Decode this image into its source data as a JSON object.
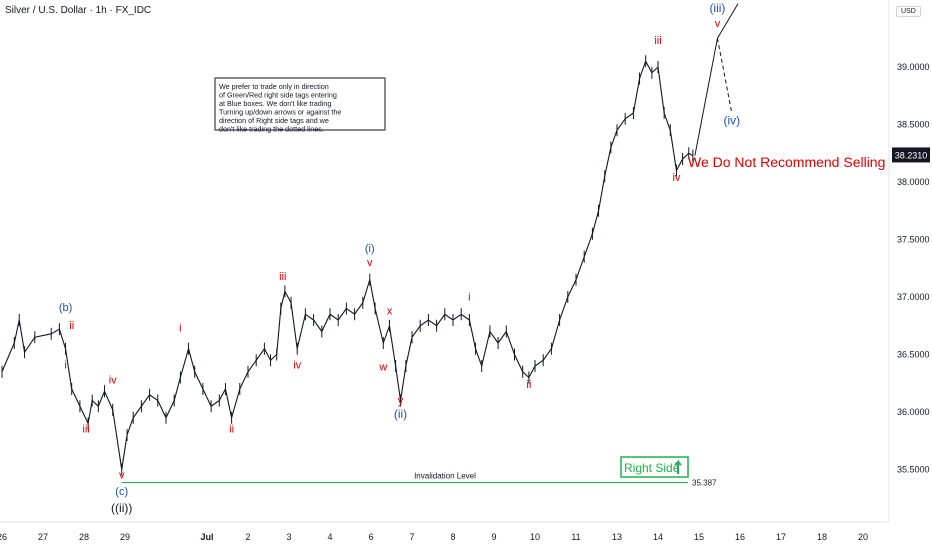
{
  "header": {
    "title": "Silver / U.S. Dollar · 1h · FX_IDC",
    "currency": "USD"
  },
  "note": "We prefer to trade only in direction of Green/Red right side tags entering at Blue boxes. We don't like trading Turning up/down arrows or against the direction of Right side tags and we don't like trading the dotted lines.",
  "headline": "We Do Not Recommend Selling",
  "right_side_label": "Right Side",
  "invalidation": {
    "label": "Invalidation Level",
    "value": 35.387,
    "value_label": "35.387"
  },
  "current_price": {
    "value": 38.231,
    "label": "38.2310"
  },
  "colors": {
    "red": "#e00000",
    "blue": "#1f4fb4",
    "green": "#22b14c",
    "candle": "#131722",
    "badge": "#131722"
  },
  "chart_data": {
    "type": "line",
    "title": "Silver / U.S. Dollar · 1h · FX_IDC",
    "xlabel": "",
    "ylabel": "USD",
    "ylim": [
      35.1,
      39.6
    ],
    "grid": false,
    "x_ticks": [
      {
        "t": 0.0,
        "label": "26"
      },
      {
        "t": 1.0,
        "label": "27"
      },
      {
        "t": 2.0,
        "label": "28"
      },
      {
        "t": 3.0,
        "label": "29"
      },
      {
        "t": 5.0,
        "label": "Jul"
      },
      {
        "t": 6.0,
        "label": "2"
      },
      {
        "t": 7.0,
        "label": "3"
      },
      {
        "t": 8.0,
        "label": "4"
      },
      {
        "t": 9.0,
        "label": "6"
      },
      {
        "t": 10.0,
        "label": "7"
      },
      {
        "t": 11.0,
        "label": "8"
      },
      {
        "t": 12.0,
        "label": "9"
      },
      {
        "t": 13.0,
        "label": "10"
      },
      {
        "t": 14.0,
        "label": "11"
      },
      {
        "t": 15.0,
        "label": "13"
      },
      {
        "t": 16.0,
        "label": "14"
      },
      {
        "t": 17.0,
        "label": "15"
      },
      {
        "t": 18.0,
        "label": "16"
      },
      {
        "t": 19.0,
        "label": "17"
      },
      {
        "t": 20.0,
        "label": "18"
      },
      {
        "t": 21.0,
        "label": "20"
      }
    ],
    "y_ticks": [
      35.5,
      36.0,
      36.5,
      37.0,
      37.5,
      38.0,
      38.5,
      39.0
    ],
    "y_tick_labels": [
      "35.5000",
      "36.0000",
      "36.5000",
      "37.0000",
      "37.5000",
      "38.0000",
      "38.5000",
      "39.0000"
    ],
    "series": [
      {
        "values": [
          [
            0.0,
            36.35
          ],
          [
            0.3,
            36.6
          ],
          [
            0.42,
            36.8
          ],
          [
            0.55,
            36.52
          ],
          [
            0.8,
            36.65
          ],
          [
            1.2,
            36.68
          ],
          [
            1.4,
            36.72
          ],
          [
            1.55,
            36.55
          ],
          [
            1.7,
            36.2
          ],
          [
            1.9,
            36.05
          ],
          [
            2.1,
            35.9
          ],
          [
            2.2,
            36.1
          ],
          [
            2.35,
            36.05
          ],
          [
            2.5,
            36.18
          ],
          [
            2.7,
            36.02
          ],
          [
            2.92,
            35.5
          ],
          [
            3.05,
            35.8
          ],
          [
            3.2,
            35.95
          ],
          [
            3.4,
            36.05
          ],
          [
            3.6,
            36.15
          ],
          [
            3.8,
            36.1
          ],
          [
            4.0,
            35.95
          ],
          [
            4.2,
            36.1
          ],
          [
            4.35,
            36.3
          ],
          [
            4.55,
            36.55
          ],
          [
            4.7,
            36.35
          ],
          [
            4.9,
            36.2
          ],
          [
            5.1,
            36.05
          ],
          [
            5.3,
            36.1
          ],
          [
            5.45,
            36.2
          ],
          [
            5.6,
            35.95
          ],
          [
            5.8,
            36.2
          ],
          [
            6.0,
            36.35
          ],
          [
            6.2,
            36.45
          ],
          [
            6.4,
            36.55
          ],
          [
            6.55,
            36.45
          ],
          [
            6.7,
            36.5
          ],
          [
            6.8,
            36.9
          ],
          [
            6.9,
            37.05
          ],
          [
            7.05,
            36.95
          ],
          [
            7.2,
            36.55
          ],
          [
            7.4,
            36.85
          ],
          [
            7.6,
            36.8
          ],
          [
            7.8,
            36.7
          ],
          [
            8.0,
            36.85
          ],
          [
            8.2,
            36.8
          ],
          [
            8.4,
            36.9
          ],
          [
            8.6,
            36.85
          ],
          [
            8.8,
            36.95
          ],
          [
            8.97,
            37.15
          ],
          [
            9.1,
            36.9
          ],
          [
            9.3,
            36.6
          ],
          [
            9.45,
            36.75
          ],
          [
            9.6,
            36.4
          ],
          [
            9.72,
            36.1
          ],
          [
            9.85,
            36.4
          ],
          [
            10.0,
            36.65
          ],
          [
            10.2,
            36.75
          ],
          [
            10.4,
            36.8
          ],
          [
            10.6,
            36.75
          ],
          [
            10.8,
            36.85
          ],
          [
            11.0,
            36.8
          ],
          [
            11.2,
            36.85
          ],
          [
            11.4,
            36.8
          ],
          [
            11.55,
            36.55
          ],
          [
            11.7,
            36.4
          ],
          [
            11.9,
            36.7
          ],
          [
            12.1,
            36.6
          ],
          [
            12.3,
            36.7
          ],
          [
            12.5,
            36.5
          ],
          [
            12.7,
            36.35
          ],
          [
            12.85,
            36.3
          ],
          [
            13.0,
            36.4
          ],
          [
            13.2,
            36.45
          ],
          [
            13.4,
            36.55
          ],
          [
            13.6,
            36.8
          ],
          [
            13.8,
            37.0
          ],
          [
            14.0,
            37.15
          ],
          [
            14.2,
            37.35
          ],
          [
            14.4,
            37.55
          ],
          [
            14.55,
            37.75
          ],
          [
            14.7,
            38.05
          ],
          [
            14.85,
            38.3
          ],
          [
            15.0,
            38.45
          ],
          [
            15.2,
            38.55
          ],
          [
            15.4,
            38.6
          ],
          [
            15.55,
            38.9
          ],
          [
            15.7,
            39.05
          ],
          [
            15.85,
            38.95
          ],
          [
            16.0,
            39.0
          ],
          [
            16.15,
            38.6
          ],
          [
            16.3,
            38.45
          ],
          [
            16.45,
            38.1
          ],
          [
            16.6,
            38.2
          ],
          [
            16.75,
            38.25
          ],
          [
            16.85,
            38.23
          ]
        ]
      },
      {
        "style": "projection",
        "values": [
          [
            16.9,
            38.23
          ],
          [
            17.45,
            39.25
          ],
          [
            17.95,
            39.55
          ]
        ]
      },
      {
        "style": "dotted",
        "values": [
          [
            17.45,
            39.25
          ],
          [
            17.8,
            38.6
          ]
        ]
      }
    ],
    "annotations": [
      {
        "text": "(b)",
        "color": "blue",
        "x": 1.55,
        "y": 36.88
      },
      {
        "text": "ii",
        "color": "red",
        "x": 1.7,
        "y": 36.72
      },
      {
        "text": "i",
        "color": "red",
        "x": 1.55,
        "y": 36.38
      },
      {
        "text": "iii",
        "color": "red",
        "x": 2.05,
        "y": 35.82
      },
      {
        "text": "iv",
        "color": "red",
        "x": 2.7,
        "y": 36.25
      },
      {
        "text": "v",
        "color": "red",
        "x": 2.92,
        "y": 35.42
      },
      {
        "text": "(c)",
        "color": "blue",
        "x": 2.92,
        "y": 35.28
      },
      {
        "text": "((ii))",
        "color": "black",
        "x": 2.92,
        "y": 35.13
      },
      {
        "text": "i",
        "color": "red",
        "x": 4.35,
        "y": 36.7
      },
      {
        "text": "ii",
        "color": "red",
        "x": 5.6,
        "y": 35.82
      },
      {
        "text": "iii",
        "color": "red",
        "x": 6.85,
        "y": 37.15
      },
      {
        "text": "iv",
        "color": "red",
        "x": 7.2,
        "y": 36.38
      },
      {
        "text": "v",
        "color": "red",
        "x": 8.97,
        "y": 37.27
      },
      {
        "text": "(i)",
        "color": "blue",
        "x": 8.97,
        "y": 37.39
      },
      {
        "text": "x",
        "color": "red",
        "x": 9.45,
        "y": 36.85
      },
      {
        "text": "w",
        "color": "red",
        "x": 9.3,
        "y": 36.36
      },
      {
        "text": "y",
        "color": "red",
        "x": 9.72,
        "y": 36.07
      },
      {
        "text": "(ii)",
        "color": "blue",
        "x": 9.72,
        "y": 35.95
      },
      {
        "text": "i",
        "color": "red",
        "x": 11.4,
        "y": 36.97
      },
      {
        "text": "ii",
        "color": "red",
        "x": 12.85,
        "y": 36.21
      },
      {
        "text": "iii",
        "color": "red",
        "x": 16.0,
        "y": 39.2
      },
      {
        "text": "iv",
        "color": "red",
        "x": 16.45,
        "y": 38.01
      },
      {
        "text": "(iii)",
        "color": "blue",
        "x": 17.45,
        "y": 39.48
      },
      {
        "text": "v",
        "color": "red",
        "x": 17.45,
        "y": 39.35
      },
      {
        "text": "(iv)",
        "color": "blue",
        "x": 17.8,
        "y": 38.5
      }
    ]
  }
}
